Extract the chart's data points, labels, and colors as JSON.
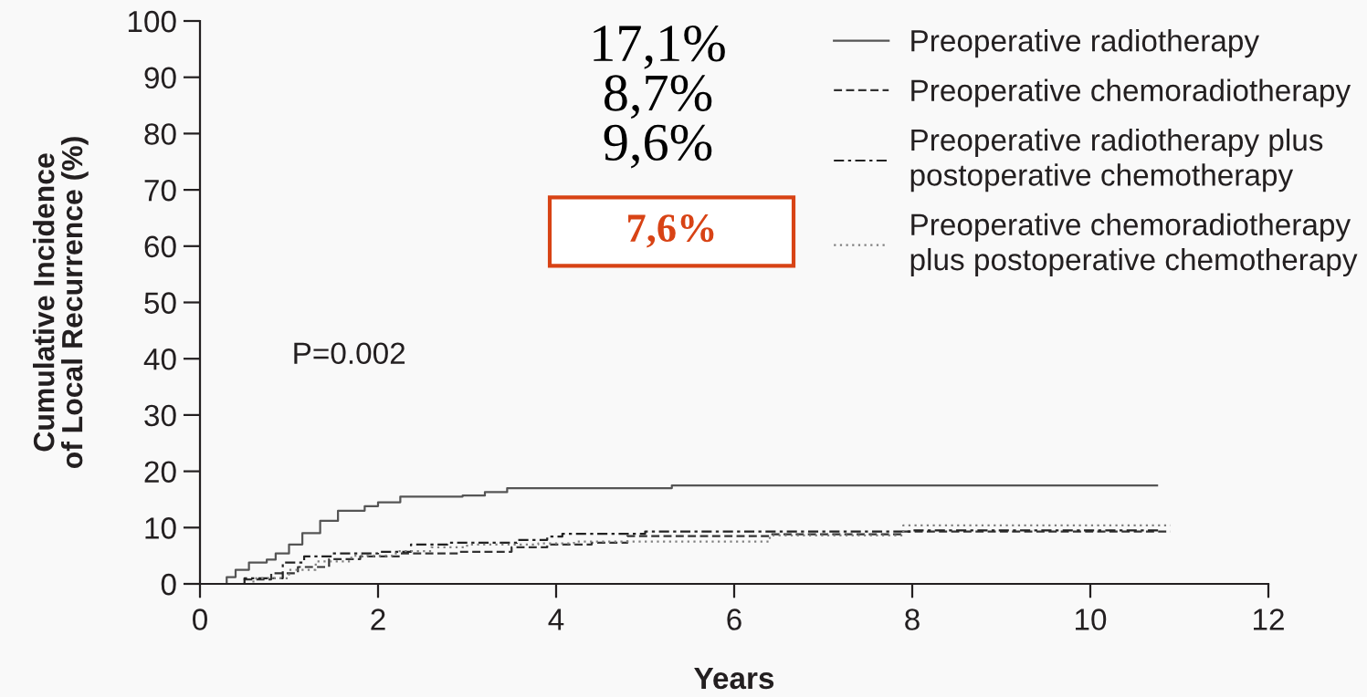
{
  "chart_data": {
    "type": "step",
    "xlabel": "Years",
    "ylabel": "Cumulative Incidence\nof Local Recurrence (%)",
    "xlim": [
      0,
      12
    ],
    "ylim": [
      0,
      100
    ],
    "xticks": [
      0,
      2,
      4,
      6,
      8,
      10,
      12
    ],
    "yticks": [
      0,
      10,
      20,
      30,
      40,
      50,
      60,
      70,
      80,
      90,
      100
    ],
    "grid": false,
    "legend": "top right",
    "series": [
      {
        "name": "Preoperative radiotherapy",
        "color": "#555555",
        "line_style": "solid",
        "x": [
          0,
          0.2,
          0.3,
          0.4,
          0.55,
          0.75,
          0.85,
          1.0,
          1.15,
          1.35,
          1.55,
          1.85,
          2.0,
          2.25,
          2.95,
          3.2,
          3.45,
          5.3,
          10.75
        ],
        "values": [
          0,
          0,
          1.2,
          2.5,
          3.8,
          4.3,
          5.4,
          7.0,
          9.0,
          11.2,
          13.0,
          13.8,
          14.5,
          15.5,
          15.7,
          16.3,
          17.0,
          17.5,
          17.5
        ]
      },
      {
        "name": "Preoperative chemoradiotherapy",
        "color": "#333333",
        "line_style": "dashed",
        "x": [
          0,
          0.25,
          0.5,
          0.8,
          1.1,
          1.45,
          1.8,
          2.25,
          2.9,
          3.5,
          3.9,
          4.4,
          4.8,
          6.4,
          7.9,
          10.9
        ],
        "values": [
          0,
          0,
          0.8,
          1.9,
          3.0,
          4.4,
          4.9,
          5.4,
          5.7,
          6.5,
          7.0,
          7.3,
          8.5,
          8.8,
          9.3,
          9.3
        ]
      },
      {
        "name": "Preoperative radiotherapy plus\npostoperative chemotherapy",
        "color": "#222222",
        "line_style": "dashdot",
        "x": [
          0,
          0.2,
          0.5,
          0.93,
          1.17,
          1.48,
          2.0,
          2.37,
          2.78,
          3.56,
          3.9,
          4.07,
          5.0,
          8.0,
          10.8
        ],
        "values": [
          0,
          0,
          1.0,
          3.8,
          4.9,
          5.4,
          5.7,
          7.0,
          7.3,
          7.8,
          8.4,
          8.9,
          9.3,
          9.5,
          9.5
        ]
      },
      {
        "name": "Preoperative chemoradiotherapy\nplus postoperative chemotherapy",
        "color": "#808080",
        "line_style": "dotted",
        "x": [
          0,
          0.3,
          0.6,
          1.0,
          1.3,
          1.7,
          2.2,
          2.6,
          3.0,
          3.8,
          4.2,
          4.8,
          6.4,
          7.9,
          10.9
        ],
        "values": [
          0,
          0,
          1.0,
          2.5,
          4.0,
          5.0,
          5.8,
          6.5,
          7.0,
          7.2,
          7.5,
          7.5,
          8.6,
          10.4,
          10.4
        ]
      }
    ],
    "annotations": [
      "17,1%",
      "8,7%",
      "9,6%",
      "7,6%",
      "P=0.002"
    ]
  }
}
